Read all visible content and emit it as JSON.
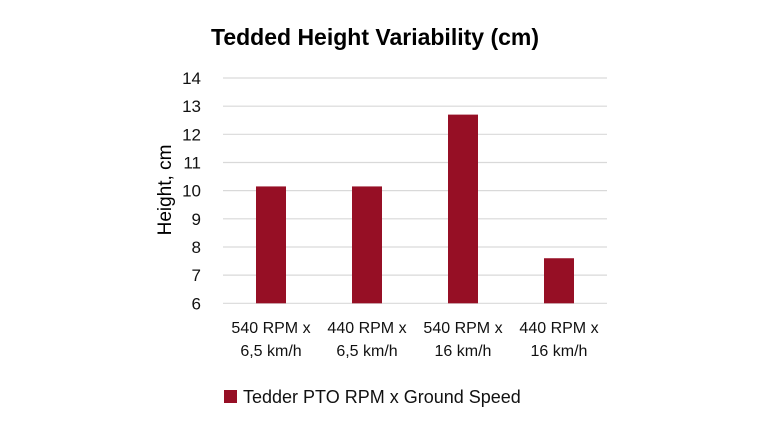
{
  "chart_data": {
    "type": "bar",
    "title": "Tedded Height Variability (cm)",
    "xlabel": "",
    "ylabel": "Height, cm",
    "ylim": [
      6,
      14
    ],
    "yticks": [
      "6",
      "7",
      "8",
      "9",
      "10",
      "11",
      "12",
      "13",
      "14"
    ],
    "grid": true,
    "categories": [
      [
        "540 RPM x",
        "6,5 km/h"
      ],
      [
        "440 RPM x",
        "6,5 km/h"
      ],
      [
        "540 RPM x",
        "16 km/h"
      ],
      [
        "440 RPM x",
        "16 km/h"
      ]
    ],
    "series": [
      {
        "name": "Tedder PTO RPM x Ground Speed",
        "values": [
          10.15,
          10.15,
          12.7,
          7.6
        ],
        "color": "#960f25"
      }
    ],
    "legend_position": "bottom"
  }
}
